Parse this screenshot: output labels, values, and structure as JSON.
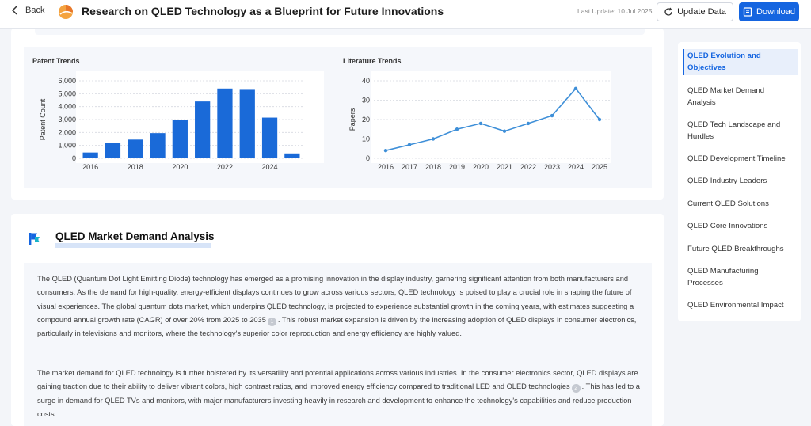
{
  "header": {
    "back_label": "Back",
    "title": "Research on QLED Technology as a Blueprint for Future Innovations",
    "last_update": "Last Update: 10 Jul 2025",
    "update_button": "Update Data",
    "download_button": "Download"
  },
  "charts": {
    "patent": {
      "title": "Patent Trends",
      "ylabel": "Patent Count",
      "y_ticks": [
        "0",
        "1,000",
        "2,000",
        "3,000",
        "4,000",
        "5,000",
        "6,000"
      ],
      "x_ticks": [
        "2016",
        "2018",
        "2020",
        "2022",
        "2024"
      ]
    },
    "literature": {
      "title": "Literature Trends",
      "ylabel": "Papers",
      "y_ticks": [
        "0",
        "10",
        "20",
        "30",
        "40"
      ],
      "x_ticks": [
        "2016",
        "2017",
        "2018",
        "2019",
        "2020",
        "2021",
        "2022",
        "2023",
        "2024",
        "2025"
      ]
    }
  },
  "chart_data": [
    {
      "type": "bar",
      "title": "Patent Trends",
      "ylabel": "Patent Count",
      "x": [
        2016,
        2017,
        2018,
        2019,
        2020,
        2021,
        2022,
        2023,
        2024,
        2025
      ],
      "values": [
        450,
        1200,
        1450,
        1950,
        2950,
        4400,
        5400,
        5300,
        3150,
        380
      ],
      "ylim": [
        0,
        6000
      ],
      "grid": true,
      "color": "#1a6ad8"
    },
    {
      "type": "line",
      "title": "Literature Trends",
      "ylabel": "Papers",
      "x": [
        2016,
        2017,
        2018,
        2019,
        2020,
        2021,
        2022,
        2023,
        2024,
        2025
      ],
      "values": [
        4,
        7,
        10,
        15,
        18,
        14,
        18,
        22,
        36,
        20
      ],
      "ylim": [
        0,
        40
      ],
      "grid": true,
      "color": "#3e8fd8"
    }
  ],
  "section": {
    "title": "QLED Market Demand Analysis",
    "para1_before_cite": "The QLED (Quantum Dot Light Emitting Diode) technology has emerged as a promising innovation in the display industry, garnering significant attention from both manufacturers and consumers. As the demand for high-quality, energy-efficient displays continues to grow across various sectors, QLED technology is poised to play a crucial role in shaping the future of visual experiences. The global quantum dots market, which underpins QLED technology, is projected to experience substantial growth in the coming years, with estimates suggesting a compound annual growth rate (CAGR) of over 20% from 2025 to 2035",
    "para1_cite": "1",
    "para1_after_cite": ". This robust market expansion is driven by the increasing adoption of QLED displays in consumer electronics, particularly in televisions and monitors, where the technology's superior color reproduction and energy efficiency are highly valued.",
    "para2_before_cite": "The market demand for QLED technology is further bolstered by its versatility and potential applications across various industries. In the consumer electronics sector, QLED displays are gaining traction due to their ability to deliver vibrant colors, high contrast ratios, and improved energy efficiency compared to traditional LED and OLED technologies",
    "para2_cite": "2",
    "para2_after_cite": ". This has led to a surge in demand for QLED TVs and monitors, with major manufacturers investing heavily in research and development to enhance the technology's capabilities and reduce production costs."
  },
  "toc": {
    "items": [
      {
        "label": "QLED Evolution and Objectives",
        "active": true
      },
      {
        "label": "QLED Market Demand Analysis",
        "active": false
      },
      {
        "label": "QLED Tech Landscape and Hurdles",
        "active": false
      },
      {
        "label": "QLED Development Timeline",
        "active": false
      },
      {
        "label": "QLED Industry Leaders",
        "active": false
      },
      {
        "label": "Current QLED Solutions",
        "active": false
      },
      {
        "label": "QLED Core Innovations",
        "active": false
      },
      {
        "label": "Future QLED Breakthroughs",
        "active": false
      },
      {
        "label": "QLED Manufacturing Processes",
        "active": false
      },
      {
        "label": "QLED Environmental Impact",
        "active": false
      }
    ]
  },
  "colors": {
    "accent": "#1565e0",
    "bar": "#1a6ad8",
    "line": "#3e8fd8"
  }
}
